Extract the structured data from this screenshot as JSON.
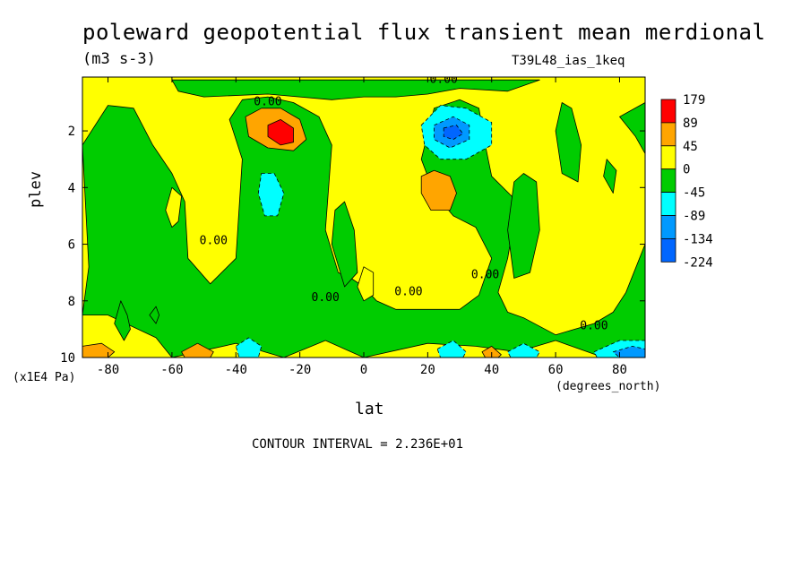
{
  "chart_data": {
    "type": "heatmap",
    "title": "poleward geopotential flux transient mean merdional",
    "units": "(m3 s-3)",
    "run_id": "T39L48_ias_1keq",
    "xlabel": "lat",
    "xunit": "(degrees_north)",
    "ylabel": "plev",
    "yunit": "(x1E4 Pa)",
    "xlim": [
      -88,
      88
    ],
    "ylim": [
      0.1,
      10
    ],
    "y_inverted": true,
    "x_ticks": [
      -80,
      -60,
      -40,
      -20,
      0,
      20,
      40,
      60,
      80
    ],
    "y_ticks": [
      2,
      4,
      6,
      8,
      10
    ],
    "contour_interval": "CONTOUR INTERVAL = 2.236E+01",
    "contour_labels": [
      {
        "text": "0.00",
        "x": -30,
        "y": 1.1
      },
      {
        "text": "0.00",
        "x": 25,
        "y": 0.3
      },
      {
        "text": "0.00",
        "x": -47,
        "y": 6.0
      },
      {
        "text": "0.00",
        "x": -12,
        "y": 8.0
      },
      {
        "text": "0.00",
        "x": 14,
        "y": 7.8
      },
      {
        "text": "0.00",
        "x": 38,
        "y": 7.2
      },
      {
        "text": "0.00",
        "x": 72,
        "y": 9.0
      }
    ],
    "legend": {
      "levels": [
        "179",
        "89",
        "45",
        "0",
        "-45",
        "-89",
        "-134",
        "-224"
      ],
      "colors": [
        "#ff0000",
        "#ffa500",
        "#ffff00",
        "#00cc00",
        "#00ffff",
        "#0099ff",
        "#0066ff"
      ]
    },
    "regions": [
      {
        "level": "-45",
        "color": "#00cc00",
        "pts": [
          [
            -88,
            2.5
          ],
          [
            -86,
            6.8
          ],
          [
            -88,
            8.5
          ],
          [
            -80,
            8.5
          ],
          [
            -65,
            9.3
          ],
          [
            -60,
            10
          ],
          [
            -40,
            9.5
          ],
          [
            -25,
            10
          ],
          [
            -12,
            9.4
          ],
          [
            0,
            10
          ],
          [
            20,
            9.5
          ],
          [
            35,
            9.6
          ],
          [
            48,
            9.8
          ],
          [
            60,
            9.4
          ],
          [
            75,
            10
          ],
          [
            88,
            10
          ],
          [
            88,
            6
          ],
          [
            82,
            7.7
          ],
          [
            78,
            8.4
          ],
          [
            72,
            8.8
          ],
          [
            60,
            9.2
          ],
          [
            50,
            8.6
          ],
          [
            45,
            8.4
          ],
          [
            42,
            7.7
          ],
          [
            45,
            6.5
          ],
          [
            48,
            4.5
          ],
          [
            40,
            3.6
          ],
          [
            38,
            2.5
          ],
          [
            36,
            1.2
          ],
          [
            30,
            0.9
          ],
          [
            22,
            1.2
          ],
          [
            18,
            3.0
          ],
          [
            22,
            4.2
          ],
          [
            28,
            5.0
          ],
          [
            35,
            5.4
          ],
          [
            40,
            6.5
          ],
          [
            36,
            7.8
          ],
          [
            30,
            8.3
          ],
          [
            18,
            8.3
          ],
          [
            10,
            8.3
          ],
          [
            4,
            8.0
          ],
          [
            0,
            7.5
          ],
          [
            -4,
            7.2
          ],
          [
            -8,
            7.0
          ],
          [
            -12,
            5.5
          ],
          [
            -10,
            2.5
          ],
          [
            -14,
            1.5
          ],
          [
            -22,
            1.0
          ],
          [
            -30,
            0.8
          ],
          [
            -38,
            0.9
          ],
          [
            -42,
            1.6
          ],
          [
            -38,
            3.0
          ],
          [
            -40,
            6.5
          ],
          [
            -48,
            7.4
          ],
          [
            -55,
            6.5
          ],
          [
            -56,
            4.5
          ],
          [
            -60,
            3.5
          ],
          [
            -66,
            2.5
          ],
          [
            -72,
            1.2
          ],
          [
            -80,
            1.1
          ]
        ]
      },
      {
        "level": "-45",
        "color": "#00cc00",
        "pts": [
          [
            -60,
            0.2
          ],
          [
            -58,
            0.6
          ],
          [
            -50,
            0.8
          ],
          [
            -30,
            0.7
          ],
          [
            -10,
            0.9
          ],
          [
            0,
            0.8
          ],
          [
            10,
            0.8
          ],
          [
            20,
            0.7
          ],
          [
            30,
            0.5
          ],
          [
            45,
            0.6
          ],
          [
            55,
            0.2
          ]
        ]
      },
      {
        "level": "-45",
        "color": "#00cc00",
        "pts": [
          [
            80,
            1.5
          ],
          [
            85,
            2.2
          ],
          [
            88,
            2.8
          ],
          [
            88,
            1.0
          ]
        ]
      },
      {
        "level": "-45",
        "color": "#00cc00",
        "pts": [
          [
            65,
            1.2
          ],
          [
            68,
            2.5
          ],
          [
            67,
            3.8
          ],
          [
            62,
            3.5
          ],
          [
            60,
            2.0
          ],
          [
            62,
            1.0
          ]
        ]
      },
      {
        "level": "-45",
        "color": "#00cc00",
        "pts": [
          [
            -6,
            4.5
          ],
          [
            -3,
            5.5
          ],
          [
            -2,
            7.0
          ],
          [
            -6,
            7.5
          ],
          [
            -10,
            6.0
          ],
          [
            -9,
            4.8
          ]
        ]
      },
      {
        "level": "-45",
        "color": "#00cc00",
        "pts": [
          [
            50,
            3.5
          ],
          [
            54,
            3.8
          ],
          [
            55,
            5.5
          ],
          [
            52,
            7.0
          ],
          [
            47,
            7.2
          ],
          [
            45,
            5.5
          ],
          [
            47,
            3.8
          ]
        ]
      },
      {
        "level": "45",
        "color": "#ffff00",
        "pts": [
          [
            -60,
            4.0
          ],
          [
            -57,
            4.3
          ],
          [
            -58,
            5.2
          ],
          [
            -60,
            5.4
          ],
          [
            -62,
            4.8
          ]
        ]
      },
      {
        "level": "45",
        "color": "#ffff00",
        "pts": [
          [
            0,
            6.8
          ],
          [
            3,
            7.0
          ],
          [
            3,
            7.8
          ],
          [
            0,
            8.0
          ],
          [
            -2,
            7.5
          ]
        ]
      },
      {
        "level": "-45",
        "color": "#00cc00",
        "pts": [
          [
            -76,
            8.0
          ],
          [
            -74,
            8.5
          ],
          [
            -73,
            9.0
          ],
          [
            -75,
            9.4
          ],
          [
            -78,
            8.8
          ]
        ]
      },
      {
        "level": "-45",
        "color": "#00cc00",
        "pts": [
          [
            -65,
            8.2
          ],
          [
            -64,
            8.5
          ],
          [
            -65,
            8.8
          ],
          [
            -67,
            8.5
          ]
        ]
      },
      {
        "level": "-45",
        "color": "#00cc00",
        "pts": [
          [
            76,
            3.0
          ],
          [
            79,
            3.4
          ],
          [
            78,
            4.2
          ],
          [
            75,
            3.6
          ]
        ]
      },
      {
        "level": "-89",
        "color": "#00ffff",
        "pts": [
          [
            -32,
            3.5
          ],
          [
            -28,
            3.5
          ],
          [
            -25,
            4.2
          ],
          [
            -27,
            5.0
          ],
          [
            -31,
            5.0
          ],
          [
            -33,
            4.2
          ]
        ]
      },
      {
        "level": "-89",
        "color": "#00ffff",
        "pts": [
          [
            18,
            1.8
          ],
          [
            24,
            1.1
          ],
          [
            32,
            1.2
          ],
          [
            40,
            1.7
          ],
          [
            40,
            2.5
          ],
          [
            32,
            3.0
          ],
          [
            24,
            3.0
          ],
          [
            19,
            2.5
          ]
        ]
      },
      {
        "level": "-134",
        "color": "#0099ff",
        "pts": [
          [
            22,
            1.8
          ],
          [
            28,
            1.5
          ],
          [
            33,
            1.8
          ],
          [
            33,
            2.3
          ],
          [
            27,
            2.6
          ],
          [
            22,
            2.3
          ]
        ]
      },
      {
        "level": "-224",
        "color": "#0066ff",
        "pts": [
          [
            25,
            1.9
          ],
          [
            29,
            1.8
          ],
          [
            31,
            2.1
          ],
          [
            28,
            2.3
          ],
          [
            25,
            2.2
          ]
        ]
      },
      {
        "level": "-89",
        "color": "#00ffff",
        "pts": [
          [
            -40,
            9.6
          ],
          [
            -36,
            9.3
          ],
          [
            -32,
            9.6
          ],
          [
            -33,
            10
          ],
          [
            -39,
            10
          ]
        ]
      },
      {
        "level": "-89",
        "color": "#00ffff",
        "pts": [
          [
            23,
            9.7
          ],
          [
            28,
            9.4
          ],
          [
            32,
            9.8
          ],
          [
            31,
            10
          ],
          [
            24,
            10
          ]
        ]
      },
      {
        "level": "-89",
        "color": "#00ffff",
        "pts": [
          [
            45,
            9.8
          ],
          [
            50,
            9.5
          ],
          [
            55,
            9.8
          ],
          [
            54,
            10
          ],
          [
            46,
            10
          ]
        ]
      },
      {
        "level": "-89",
        "color": "#00ffff",
        "pts": [
          [
            72,
            9.8
          ],
          [
            80,
            9.4
          ],
          [
            88,
            9.4
          ],
          [
            88,
            10
          ],
          [
            73,
            10
          ]
        ]
      },
      {
        "level": "-134",
        "color": "#0099ff",
        "pts": [
          [
            78,
            9.8
          ],
          [
            84,
            9.6
          ],
          [
            88,
            9.7
          ],
          [
            88,
            10
          ],
          [
            80,
            10
          ]
        ]
      },
      {
        "level": "89",
        "color": "#ffa500",
        "pts": [
          [
            -37,
            1.5
          ],
          [
            -32,
            1.2
          ],
          [
            -26,
            1.2
          ],
          [
            -20,
            1.6
          ],
          [
            -18,
            2.3
          ],
          [
            -22,
            2.7
          ],
          [
            -30,
            2.6
          ],
          [
            -36,
            2.2
          ]
        ]
      },
      {
        "level": "179",
        "color": "#ff0000",
        "pts": [
          [
            -30,
            1.8
          ],
          [
            -26,
            1.6
          ],
          [
            -22,
            1.9
          ],
          [
            -22,
            2.4
          ],
          [
            -26,
            2.5
          ],
          [
            -30,
            2.2
          ]
        ]
      },
      {
        "level": "89",
        "color": "#ffa500",
        "pts": [
          [
            18,
            3.6
          ],
          [
            22,
            3.4
          ],
          [
            27,
            3.6
          ],
          [
            29,
            4.2
          ],
          [
            27,
            4.8
          ],
          [
            21,
            4.8
          ],
          [
            18,
            4.2
          ]
        ]
      },
      {
        "level": "89",
        "color": "#ffa500",
        "pts": [
          [
            -88,
            9.6
          ],
          [
            -82,
            9.5
          ],
          [
            -78,
            9.8
          ],
          [
            -80,
            10
          ],
          [
            -88,
            10
          ]
        ]
      },
      {
        "level": "89",
        "color": "#ffa500",
        "pts": [
          [
            -57,
            9.8
          ],
          [
            -52,
            9.5
          ],
          [
            -47,
            9.8
          ],
          [
            -48,
            10
          ],
          [
            -56,
            10
          ]
        ]
      },
      {
        "level": "89",
        "color": "#ffa500",
        "pts": [
          [
            37,
            9.8
          ],
          [
            40,
            9.6
          ],
          [
            43,
            9.9
          ],
          [
            42,
            10
          ],
          [
            38,
            10
          ]
        ]
      }
    ]
  }
}
